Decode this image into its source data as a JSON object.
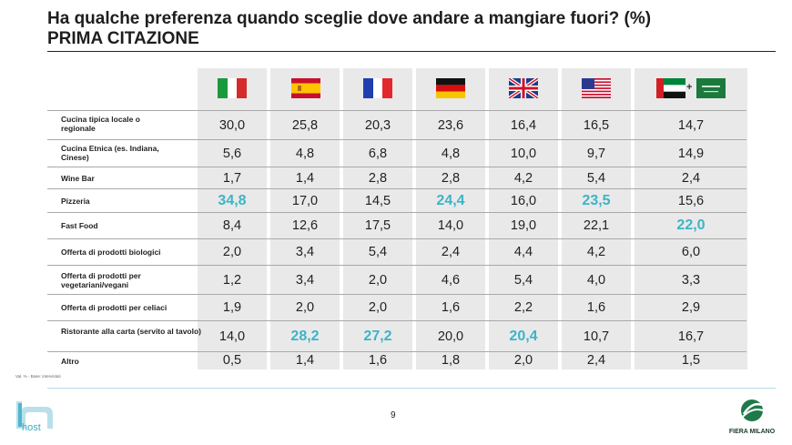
{
  "title": "Ha qualche preferenza quando sceglie dove andare a mangiare fuori? (%)",
  "subtitle": "PRIMA CITAZIONE",
  "countries": [
    {
      "name": "italy-flag"
    },
    {
      "name": "spain-flag"
    },
    {
      "name": "france-flag"
    },
    {
      "name": "germany-flag"
    },
    {
      "name": "uk-flag"
    },
    {
      "name": "usa-flag"
    },
    {
      "name": "uae-saudi-flags",
      "joiner": "+"
    }
  ],
  "rows": [
    {
      "label": "Cucina tipica locale o regionale",
      "values": [
        "30,0",
        "25,8",
        "20,3",
        "23,6",
        "16,4",
        "16,5",
        "14,7"
      ]
    },
    {
      "label": "Cucina Etnica (es. Indiana, Cinese)",
      "values": [
        "5,6",
        "4,8",
        "6,8",
        "4,8",
        "10,0",
        "9,7",
        "14,9"
      ]
    },
    {
      "label": "Wine Bar",
      "values": [
        "1,7",
        "1,4",
        "2,8",
        "2,8",
        "4,2",
        "5,4",
        "2,4"
      ]
    },
    {
      "label": "Pizzeria",
      "values": [
        "34,8",
        "17,0",
        "14,5",
        "24,4",
        "16,0",
        "23,5",
        "15,6"
      ]
    },
    {
      "label": "Fast Food",
      "values": [
        "8,4",
        "12,6",
        "17,5",
        "14,0",
        "19,0",
        "22,1",
        "22,0"
      ]
    },
    {
      "label": "Offerta di prodotti biologici",
      "values": [
        "2,0",
        "3,4",
        "5,4",
        "2,4",
        "4,4",
        "4,2",
        "6,0"
      ]
    },
    {
      "label": "Offerta di prodotti per vegetariani/vegani",
      "values": [
        "1,2",
        "3,4",
        "2,0",
        "4,6",
        "5,4",
        "4,0",
        "3,3"
      ]
    },
    {
      "label": "Offerta di prodotti per celiaci",
      "values": [
        "1,9",
        "2,0",
        "2,0",
        "1,6",
        "2,2",
        "1,6",
        "2,9"
      ]
    },
    {
      "label": "Ristorante alla carta (servito al tavolo)",
      "values": [
        "14,0",
        "28,2",
        "27,2",
        "20,0",
        "20,4",
        "10,7",
        "16,7"
      ]
    },
    {
      "label": "Altro",
      "values": [
        "0,5",
        "1,4",
        "1,6",
        "1,8",
        "2,0",
        "2,4",
        "1,5"
      ]
    }
  ],
  "highlight_color": "#3cb4c7",
  "footnote": "Val. % - Base: intervistati",
  "page_number": "9",
  "logos": {
    "left": "host",
    "right": "FIERA MILANO"
  }
}
